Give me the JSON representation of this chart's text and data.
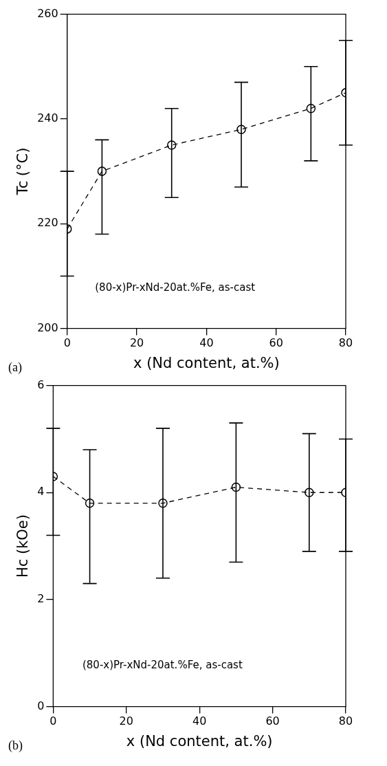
{
  "chart_data": [
    {
      "type": "line",
      "xlabel": "x (Nd content, at.%)",
      "ylabel": "Tc (°C)",
      "x": [
        0,
        10,
        30,
        50,
        70,
        80
      ],
      "series": [
        {
          "color": "#000000",
          "values": [
            219,
            230,
            235,
            238,
            242,
            245
          ],
          "errors": [
            [
              210,
              230
            ],
            [
              218,
              236
            ],
            [
              225,
              242
            ],
            [
              227,
              247
            ],
            [
              232,
              250
            ],
            [
              235,
              255
            ]
          ]
        }
      ],
      "xlim": [
        0,
        80
      ],
      "xticks": [
        0,
        20,
        40,
        60,
        80
      ],
      "ylim": [
        200,
        260
      ],
      "yticks": [
        200,
        220,
        240,
        260
      ],
      "marker": "circle",
      "line_style": "dashed",
      "grid": false,
      "legend": false,
      "annotations": [
        "(80-x)Pr-xNd-20at.%Fe, as-cast",
        "(a)"
      ]
    },
    {
      "type": "line",
      "xlabel": "x (Nd content, at.%)",
      "ylabel": "Hc (kOe)",
      "x": [
        0,
        10,
        30,
        50,
        70,
        80
      ],
      "series": [
        {
          "color": "#000000",
          "values": [
            4.3,
            3.8,
            3.8,
            4.1,
            4.0,
            4.0
          ],
          "errors": [
            [
              3.2,
              5.2
            ],
            [
              2.3,
              4.8
            ],
            [
              2.4,
              5.2
            ],
            [
              2.7,
              5.3
            ],
            [
              2.9,
              5.1
            ],
            [
              2.9,
              5.0
            ]
          ]
        }
      ],
      "xlim": [
        0,
        80
      ],
      "xticks": [
        0,
        20,
        40,
        60,
        80
      ],
      "ylim": [
        0,
        6
      ],
      "yticks": [
        0,
        2,
        4,
        6
      ],
      "marker": "circle",
      "line_style": "dashed",
      "grid": false,
      "legend": false,
      "annotations": [
        "(80-x)Pr-xNd-20at.%Fe, as-cast",
        "(b)"
      ]
    }
  ]
}
